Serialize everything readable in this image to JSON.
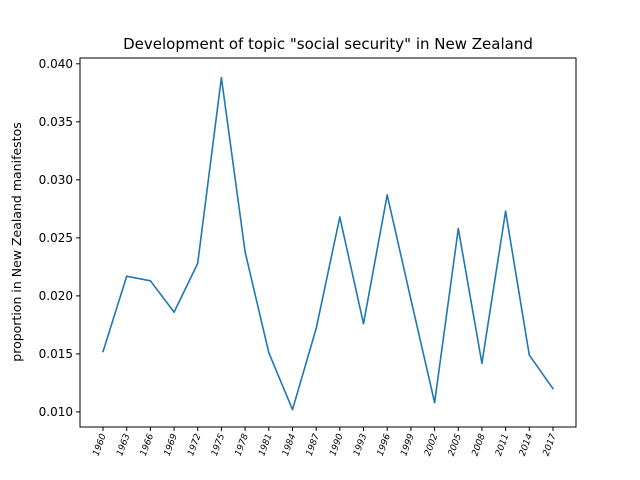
{
  "chart_data": {
    "type": "line",
    "title": "Development of topic \"social security\" in New Zealand",
    "xlabel": "",
    "ylabel": "proportion in New Zealand manifestos",
    "categories": [
      "1960",
      "1963",
      "1966",
      "1969",
      "1972",
      "1975",
      "1978",
      "1981",
      "1984",
      "1987",
      "1990",
      "1993",
      "1996",
      "1999",
      "2002",
      "2005",
      "2008",
      "2011",
      "2014",
      "2017"
    ],
    "series": [
      {
        "values": [
          0.0152,
          0.0217,
          0.0213,
          0.0186,
          0.0228,
          0.0388,
          0.0238,
          0.0151,
          0.0102,
          0.0172,
          0.0268,
          0.0176,
          0.0287,
          0.0197,
          0.0108,
          0.0258,
          0.0142,
          0.0273,
          0.0149,
          0.012
        ],
        "color": "#1f77b4"
      }
    ],
    "ylim": [
      0.0087,
      0.0405
    ],
    "yticks": [
      "0.010",
      "0.015",
      "0.020",
      "0.025",
      "0.030",
      "0.035",
      "0.040"
    ],
    "ytick_values": [
      0.01,
      0.015,
      0.02,
      0.025,
      0.03,
      0.035,
      0.04
    ],
    "grid": false,
    "legend": "none"
  }
}
